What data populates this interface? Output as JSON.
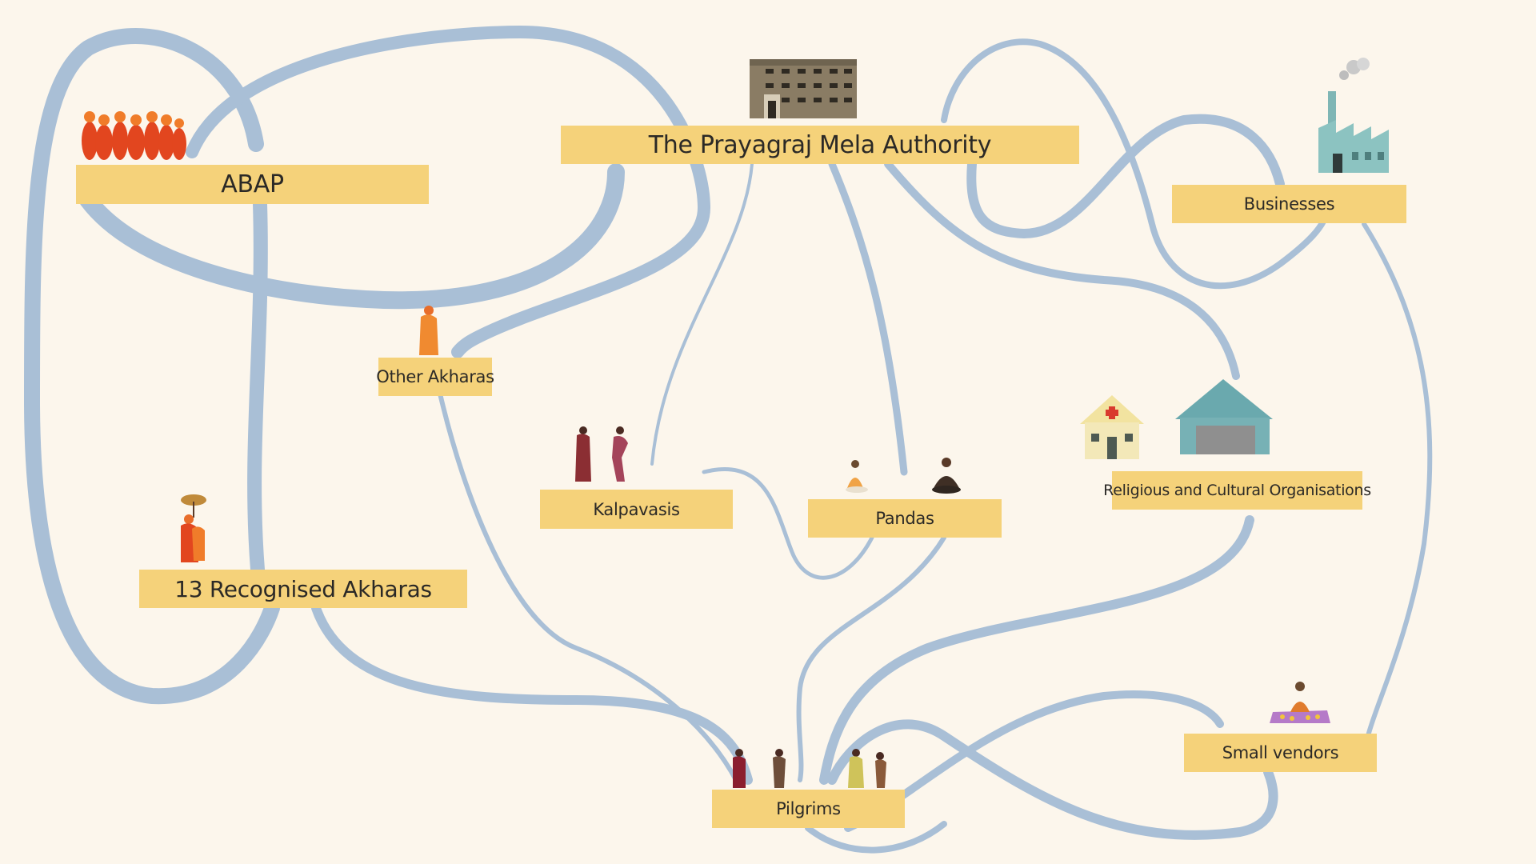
{
  "diagram": {
    "background_color": "#fcf6ec",
    "node_color": "#f5d27a",
    "flow_color": "#a9bfd6",
    "text_color": "#2b2926",
    "nodes": {
      "authority": "The Prayagraj Mela Authority",
      "abap": "ABAP",
      "businesses": "Businesses",
      "other_akharas": "Other Akharas",
      "kalpavasis": "Kalpavasis",
      "pandas": "Pandas",
      "religious_orgs": "Religious and Cultural Organisations",
      "recognised_akharas": "13 Recognised Akharas",
      "small_vendors": "Small vendors",
      "pilgrims": "Pilgrims"
    },
    "illustrations": [
      {
        "name": "authority-building-illustration",
        "depicts": "office building"
      },
      {
        "name": "abap-sadhus-illustration",
        "depicts": "group of saffron-robed sadhus"
      },
      {
        "name": "factory-illustration",
        "depicts": "factory with smokestack"
      },
      {
        "name": "other-akharas-sadhu-illustration",
        "depicts": "single saffron-robed sadhu"
      },
      {
        "name": "kalpavasis-illustration",
        "depicts": "two women devotees"
      },
      {
        "name": "pandas-illustration",
        "depicts": "two seated priests"
      },
      {
        "name": "medical-tent-illustration",
        "depicts": "medical camp with red cross"
      },
      {
        "name": "pavilion-tent-illustration",
        "depicts": "large teal tent"
      },
      {
        "name": "recognised-akharas-illustration",
        "depicts": "sadhus under an umbrella"
      },
      {
        "name": "vendor-illustration",
        "depicts": "vendor seated on a mat with goods"
      },
      {
        "name": "pilgrims-illustration",
        "depicts": "four pilgrims walking"
      }
    ]
  }
}
